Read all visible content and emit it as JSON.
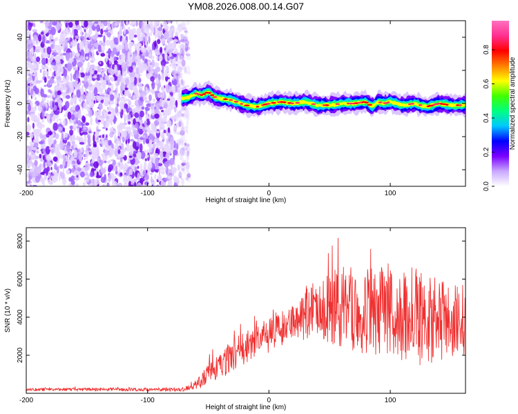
{
  "title": "YM08.2026.008.00.14.G07",
  "colorbar": {
    "label": "Normalized spectral amplitude",
    "ticks": [
      "0.0",
      "0.2",
      "0.4",
      "0.6",
      "0.8"
    ],
    "tick_values": [
      0.0,
      0.2,
      0.4,
      0.6,
      0.8
    ],
    "range": [
      0,
      0.97
    ],
    "colors": [
      "#ffffff",
      "#c9a8ff",
      "#7a00ff",
      "#0000ff",
      "#00c8ff",
      "#00ff80",
      "#40ff00",
      "#ffff00",
      "#ff8000",
      "#ff0000",
      "#ff3090",
      "#ff70c0"
    ]
  },
  "chart_data": [
    {
      "type": "heatmap",
      "name": "spectrogram",
      "xlabel": "Height of straight line (km)",
      "ylabel": "Frequency (Hz)",
      "xlim": [
        -200,
        162
      ],
      "ylim": [
        -50,
        50
      ],
      "x_ticks": [
        -200,
        -100,
        0,
        100
      ],
      "x_tick_labels": [
        "-200",
        "-100",
        "0",
        "100"
      ],
      "y_ticks": [
        -40,
        -20,
        0,
        20,
        40
      ],
      "y_tick_labels": [
        "-40",
        "-20",
        "0",
        "20",
        "40"
      ],
      "noise_region_x": [
        -200,
        -70
      ],
      "ridge": {
        "x": [
          -72,
          -65,
          -60,
          -55,
          -50,
          -45,
          -40,
          -30,
          -20,
          -10,
          0,
          10,
          20,
          30,
          40,
          50,
          60,
          70,
          80,
          85,
          90,
          95,
          100,
          110,
          120,
          130,
          140,
          150,
          162
        ],
        "y": [
          3,
          4,
          6,
          5,
          7,
          4,
          3,
          2,
          -1,
          -2,
          0,
          1,
          0,
          1,
          -1,
          -1,
          0,
          0,
          1,
          -2,
          1,
          0,
          1,
          -1,
          0,
          -2,
          0,
          -1,
          -1
        ]
      }
    },
    {
      "type": "line",
      "name": "snr",
      "xlabel": "Height of straight line (km)",
      "ylabel": "SNR (10 * v/v)",
      "xlim": [
        -200,
        162
      ],
      "ylim": [
        0,
        8700
      ],
      "x_ticks": [
        -200,
        -100,
        0,
        100
      ],
      "x_tick_labels": [
        "-200",
        "-100",
        "0",
        "100"
      ],
      "y_ticks": [
        2000,
        4000,
        6000,
        8000
      ],
      "y_tick_labels": [
        "2000",
        "4000",
        "6000",
        "8000"
      ],
      "color": "#f03030",
      "envelope": {
        "x": [
          -200,
          -150,
          -100,
          -70,
          -60,
          -55,
          -50,
          -40,
          -35,
          -30,
          -20,
          -10,
          0,
          10,
          20,
          25,
          28,
          30,
          40,
          50,
          60,
          70,
          80,
          90,
          100,
          110,
          120,
          130,
          140,
          150,
          162
        ],
        "mean": [
          200,
          200,
          200,
          200,
          450,
          700,
          1000,
          1500,
          1700,
          2000,
          2400,
          2800,
          3000,
          3400,
          3700,
          3800,
          4100,
          4300,
          4500,
          4500,
          4500,
          4400,
          4300,
          4300,
          4300,
          4000,
          4000,
          4000,
          3800,
          3600,
          3600
        ],
        "amp": [
          80,
          80,
          90,
          100,
          250,
          400,
          600,
          600,
          900,
          800,
          900,
          900,
          900,
          900,
          900,
          900,
          1500,
          1500,
          1500,
          1900,
          2200,
          2200,
          2300,
          2300,
          2400,
          2400,
          2700,
          2400,
          2200,
          2200,
          2200
        ]
      }
    }
  ]
}
